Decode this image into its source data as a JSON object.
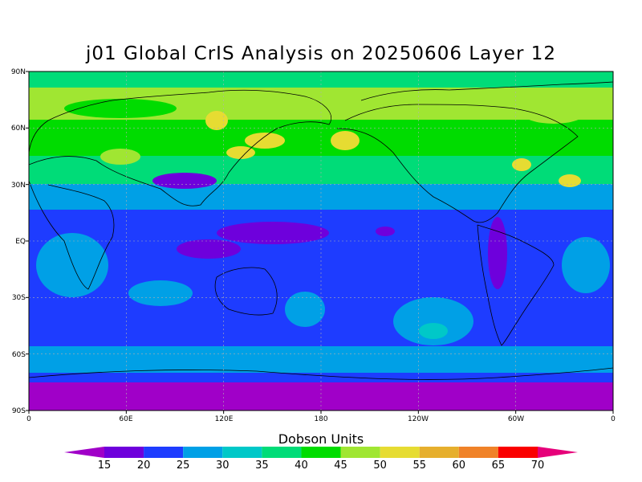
{
  "title": "j01 Global CrIS Analysis on 20250606 Layer 12",
  "y_ticks": [
    "90N",
    "60N",
    "30N",
    "EQ",
    "30S",
    "60S",
    "90S"
  ],
  "x_ticks": [
    "0",
    "60E",
    "120E",
    "180",
    "120W",
    "60W",
    "0"
  ],
  "colorbar": {
    "label": "Dobson Units",
    "ticks": [
      "15",
      "20",
      "25",
      "30",
      "35",
      "40",
      "45",
      "50",
      "55",
      "60",
      "65",
      "70"
    ],
    "colors": [
      "#a000c8",
      "#6e00dc",
      "#1e3cff",
      "#00a0e6",
      "#00c8c8",
      "#00dc78",
      "#00dc00",
      "#a0e632",
      "#e6dc32",
      "#e6af2d",
      "#f08228",
      "#fa0000",
      "#e6007a"
    ]
  },
  "chart_data": {
    "type": "heatmap",
    "title": "j01 Global CrIS Analysis on 20250606 Layer 12",
    "units": "Dobson Units",
    "value_range": [
      15,
      70
    ],
    "lon_range": [
      0,
      360
    ],
    "lat_range": [
      -90,
      90
    ],
    "zonal_values": [
      {
        "lat": 85,
        "value": 43
      },
      {
        "lat": 70,
        "value": 47
      },
      {
        "lat": 60,
        "value": 44
      },
      {
        "lat": 45,
        "value": 41
      },
      {
        "lat": 30,
        "value": 33
      },
      {
        "lat": 15,
        "value": 26
      },
      {
        "lat": 0,
        "value": 23
      },
      {
        "lat": -15,
        "value": 24
      },
      {
        "lat": -30,
        "value": 25
      },
      {
        "lat": -45,
        "value": 27
      },
      {
        "lat": -60,
        "value": 29
      },
      {
        "lat": -68,
        "value": 24
      },
      {
        "lat": -80,
        "value": 18
      }
    ]
  }
}
